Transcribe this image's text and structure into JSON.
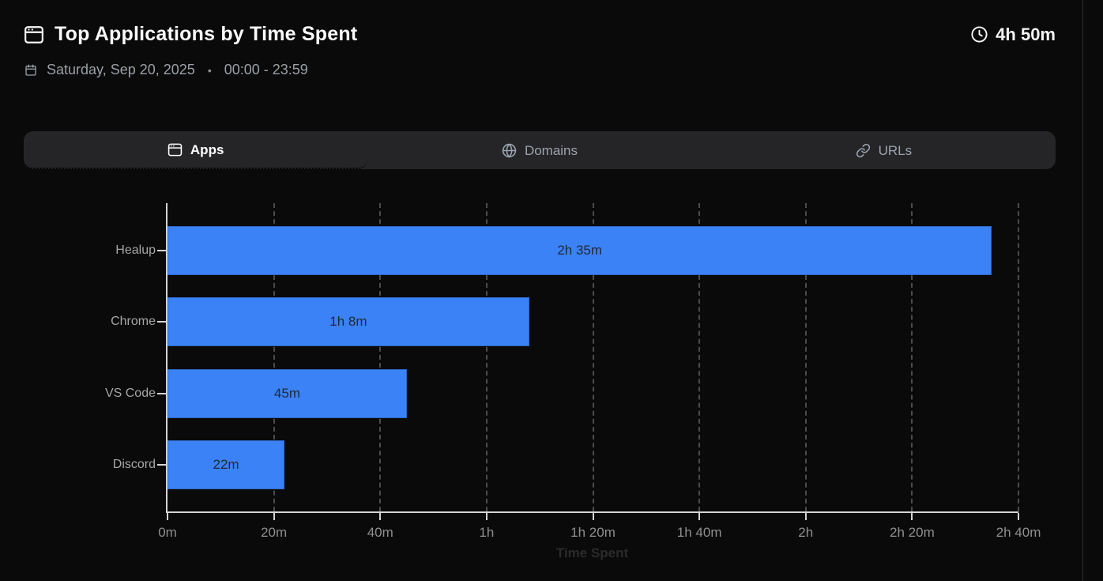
{
  "header": {
    "title": "Top Applications by Time Spent",
    "total_time": "4h 50m",
    "date": "Saturday, Sep 20, 2025",
    "bullet": "•",
    "time_range": "00:00 - 23:59"
  },
  "tabs": {
    "apps": {
      "label": "Apps"
    },
    "domains": {
      "label": "Domains"
    },
    "urls": {
      "label": "URLs"
    },
    "active_tab": "Apps"
  },
  "chart_data": {
    "type": "bar",
    "orientation": "horizontal",
    "categories": [
      "Healup",
      "Chrome",
      "VS Code",
      "Discord"
    ],
    "values_minutes": [
      155,
      68,
      45,
      22
    ],
    "bar_labels": [
      "2h 35m",
      "1h 8m",
      "45m",
      "22m"
    ],
    "xlabel": "Time Spent",
    "ylabel": "",
    "xlim_minutes": [
      0,
      160
    ],
    "x_ticks_minutes": [
      0,
      20,
      40,
      60,
      80,
      100,
      120,
      140,
      160
    ],
    "x_tick_labels": [
      "0m",
      "20m",
      "40m",
      "1h",
      "1h 20m",
      "1h 40m",
      "2h",
      "2h 20m",
      "2h 40m"
    ],
    "grid": "vertical-dashed",
    "legend": "none",
    "bar_color": "#3b82f6",
    "bar_label_color": "#1f2937"
  },
  "colors": {
    "background": "#0a0a0a",
    "accent_blue": "#3b82f6",
    "tab_bar_bg": "#252527",
    "muted_text": "#9aa0a6",
    "axis": "#d4d4d4",
    "gridline": "#4b4b4b"
  }
}
